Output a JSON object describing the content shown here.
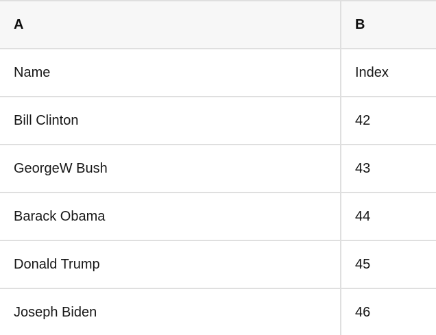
{
  "table": {
    "columns": [
      {
        "label": "A"
      },
      {
        "label": "B"
      }
    ],
    "rows": [
      [
        "Name",
        "Index"
      ],
      [
        "Bill Clinton",
        "42"
      ],
      [
        "GeorgeW Bush",
        "43"
      ],
      [
        "Barack Obama",
        "44"
      ],
      [
        "Donald Trump",
        "45"
      ],
      [
        "Joseph Biden",
        "46"
      ]
    ]
  },
  "colors": {
    "header_bg": "#f7f7f7",
    "border": "#dfdfdf",
    "text": "#161616",
    "body_bg": "#ffffff"
  }
}
